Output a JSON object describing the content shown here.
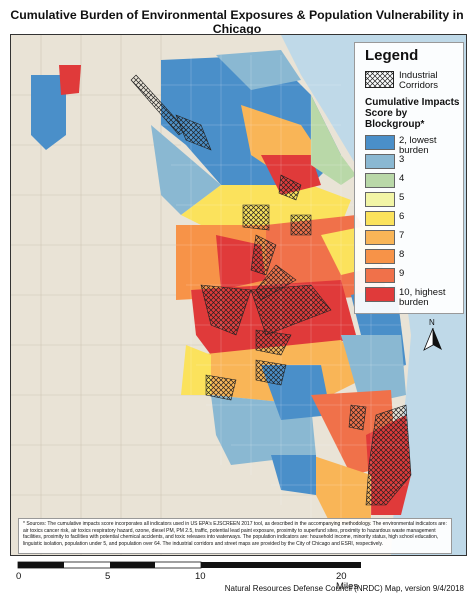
{
  "title": "Cumulative Burden of Environmental Exposures & Population Vulnerability in Chicago",
  "legend": {
    "title": "Legend",
    "industrial_label": "Industrial Corridors",
    "impacts_heading": "Cumulative Impacts Score by Blockgroup*",
    "classes": [
      {
        "label": "2, lowest burden",
        "color": "#4a8fc9"
      },
      {
        "label": "3",
        "color": "#8ab8d2"
      },
      {
        "label": "4",
        "color": "#b9d8a8"
      },
      {
        "label": "5",
        "color": "#f2f5a6"
      },
      {
        "label": "6",
        "color": "#fbe25c"
      },
      {
        "label": "7",
        "color": "#f9b557"
      },
      {
        "label": "8",
        "color": "#f79348"
      },
      {
        "label": "9",
        "color": "#f0714a"
      },
      {
        "label": "10, highest burden",
        "color": "#e03a3a"
      }
    ]
  },
  "north_label": "N",
  "footnote": "* Sources: The cumulative impacts score incorporates all indicators used in US EPA's EJSCREEN 2017 tool, as described in the accompanying methodology. The environmental indicators are: air toxics cancer risk, air toxics respiratory hazard, ozone, diesel PM, PM 2.5, traffic, potential lead paint exposure, proximity to superfund sites, proximity to hazardous waste management facilities, proximity to facilities with potential chemical accidents, and toxic releases into waterways. The population indicators are: household income, minority status, high school education, linguistic isolation, population under 5, and population over 64. The industrial corridors and street maps are provided by the City of Chicago and ESRI, respectively.",
  "scale": {
    "ticks": [
      "0",
      "5",
      "10",
      "20 Miles"
    ]
  },
  "credit": "Natural Resources Defense Council (NRDC) Map, version 9/4/2018",
  "colors": {
    "lake": "#bfd9e8",
    "suburb": "#e9e3d6"
  }
}
